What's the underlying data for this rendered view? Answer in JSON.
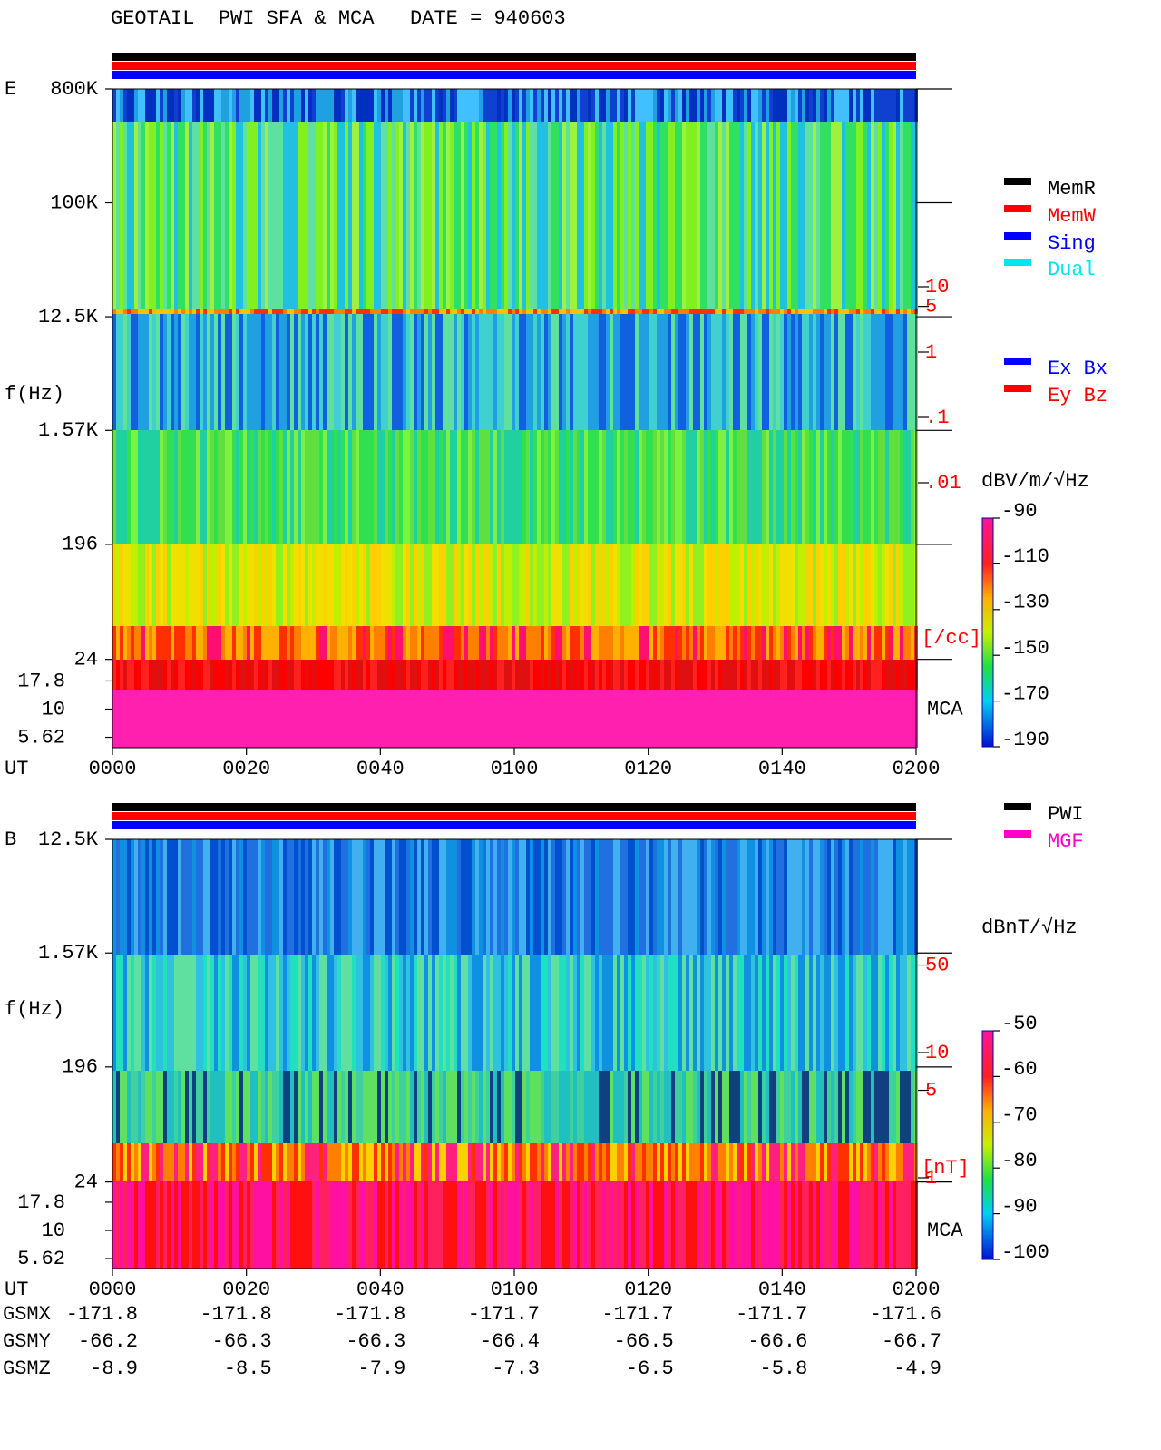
{
  "title": "GEOTAIL  PWI SFA & MCA   DATE = 940603",
  "chart_data": [
    {
      "type": "spectrogram",
      "panel": "E",
      "ylabel": "f(Hz)",
      "xlabel": "UT",
      "categories": [
        "0000",
        "0020",
        "0040",
        "0100",
        "0120",
        "0140",
        "0200"
      ],
      "yticks": [
        {
          "value": 800000,
          "label": "800K"
        },
        {
          "value": 100000,
          "label": "100K"
        },
        {
          "value": 12500,
          "label": "12.5K"
        },
        {
          "value": 1570,
          "label": "1.57K"
        },
        196,
        24
      ],
      "mca_ticks": [
        17.8,
        10,
        5.62
      ],
      "mca_label": "MCA",
      "density_ticks": [
        10,
        5,
        1,
        {
          "value": 0.1,
          "label": ".1"
        },
        {
          "value": 0.01,
          "label": ".01"
        }
      ],
      "density_unit": "[/cc]",
      "colorbar": {
        "label": "dBV/m/√Hz",
        "lim": [
          -190,
          -90
        ],
        "ticks": [
          -90,
          -110,
          -130,
          -150,
          -170,
          -190
        ]
      },
      "legend": [
        {
          "name": "MemR",
          "color": "#000000"
        },
        {
          "name": "MemW",
          "color": "#ff0000"
        },
        {
          "name": "Sing",
          "color": "#0000ff"
        },
        {
          "name": "Dual",
          "color": "#00e5ee"
        }
      ],
      "legend2": [
        {
          "name": "Ex Bx",
          "color": "#0000ff"
        },
        {
          "name": "Ey Bz",
          "color": "#ff0000"
        }
      ]
    },
    {
      "type": "spectrogram",
      "panel": "B",
      "ylabel": "f(Hz)",
      "xlabel": "UT",
      "categories": [
        "0000",
        "0020",
        "0040",
        "0100",
        "0120",
        "0140",
        "0200"
      ],
      "yticks": [
        {
          "value": 12500,
          "label": "12.5K"
        },
        {
          "value": 1570,
          "label": "1.57K"
        },
        196,
        24
      ],
      "mca_ticks": [
        17.8,
        10,
        5.62
      ],
      "mca_label": "MCA",
      "density_ticks": [
        50,
        10,
        5,
        1
      ],
      "density_unit": "[nT]",
      "colorbar": {
        "label": "dBnT/√Hz",
        "lim": [
          -100,
          -50
        ],
        "ticks": [
          -50,
          -60,
          -70,
          -80,
          -90,
          -100
        ]
      },
      "legend": [
        {
          "name": "PWI",
          "color": "#000000"
        },
        {
          "name": "MGF",
          "color": "#ff00cc"
        }
      ]
    }
  ],
  "orbit": {
    "rows": [
      {
        "name": "GSMX",
        "values": [
          -171.8,
          -171.8,
          -171.8,
          -171.7,
          -171.7,
          -171.7,
          -171.6
        ]
      },
      {
        "name": "GSMY",
        "values": [
          -66.2,
          -66.3,
          -66.3,
          -66.4,
          -66.5,
          -66.6,
          -66.7
        ]
      },
      {
        "name": "GSMZ",
        "values": [
          -8.9,
          -8.5,
          -7.9,
          -7.3,
          -6.5,
          -5.8,
          -4.9
        ]
      }
    ]
  }
}
